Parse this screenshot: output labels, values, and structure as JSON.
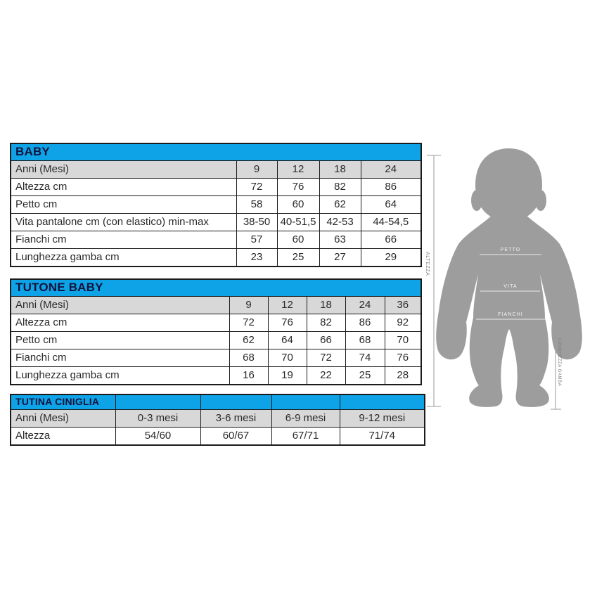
{
  "page": {
    "background": "#ffffff"
  },
  "colors": {
    "header_blue": "#0ea3e6",
    "header_text": "#12123d",
    "row_gray": "#d8d8d8",
    "border": "#1b1b1b",
    "cell_text": "#2a2a2a",
    "figure_gray": "#9d9d9d",
    "measure_line_gray": "#9a9a9a",
    "body_line_white": "#f4f4f4"
  },
  "tables": [
    {
      "id": "baby",
      "title": "BABY",
      "header_cells": [
        "Anni (Mesi)",
        "9",
        "12",
        "18",
        "24"
      ],
      "rows": [
        [
          "Altezza cm",
          "72",
          "76",
          "82",
          "86"
        ],
        [
          "Petto cm",
          "58",
          "60",
          "62",
          "64"
        ],
        [
          "Vita pantalone cm (con elastico) min-max",
          "38-50",
          "40-51,5",
          "42-53",
          "44-54,5"
        ],
        [
          "Fianchi cm",
          "57",
          "60",
          "63",
          "66"
        ],
        [
          "Lunghezza gamba cm",
          "23",
          "25",
          "27",
          "29"
        ]
      ]
    },
    {
      "id": "tutone",
      "title": "TUTONE BABY",
      "header_cells": [
        "Anni (Mesi)",
        "9",
        "12",
        "18",
        "24",
        "36"
      ],
      "rows": [
        [
          "Altezza cm",
          "72",
          "76",
          "82",
          "86",
          "92"
        ],
        [
          "Petto cm",
          "62",
          "64",
          "66",
          "68",
          "70"
        ],
        [
          "Fianchi cm",
          "68",
          "70",
          "72",
          "74",
          "76"
        ],
        [
          "Lunghezza gamba cm",
          "16",
          "19",
          "22",
          "25",
          "28"
        ]
      ]
    },
    {
      "id": "tutina",
      "title": "TUTINA CINIGLIA",
      "title_cells": [
        "TUTINA CINIGLIA",
        "",
        "",
        "",
        ""
      ],
      "header_cells": [
        "Anni (Mesi)",
        "0-3 mesi",
        "3-6 mesi",
        "6-9 mesi",
        "9-12 mesi"
      ],
      "rows": [
        [
          "Altezza",
          "54/60",
          "60/67",
          "67/71",
          "71/74"
        ]
      ]
    }
  ],
  "figure": {
    "labels": {
      "altezza": "ALTEZZA",
      "petto": "PETTO",
      "vita": "VITA",
      "fianchi": "FIANCHI",
      "lunghezza_gamba": "LUNGHEZZA GAMBA"
    }
  }
}
